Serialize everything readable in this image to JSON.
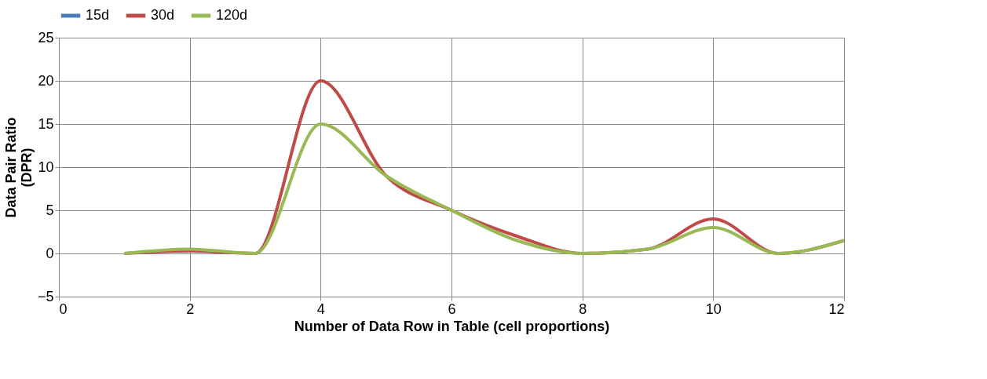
{
  "chart_data": {
    "type": "line",
    "xlabel": "Number of Data Row in Table  (cell proportions)",
    "ylabel": "Data Pair Ratio\n(DPR)",
    "x": [
      1,
      2,
      3,
      4,
      5,
      6,
      7,
      8,
      9,
      10,
      11,
      12
    ],
    "series": [
      {
        "name": "15d",
        "color": "#4a7ebb",
        "values": [
          null,
          null,
          null,
          null,
          null,
          null,
          null,
          null,
          null,
          null,
          null,
          null
        ]
      },
      {
        "name": "30d",
        "color": "#be4b48",
        "values": [
          0,
          0.3,
          0,
          20,
          9,
          5,
          2,
          0,
          0.5,
          4,
          0,
          1.5
        ]
      },
      {
        "name": "120d",
        "color": "#98b954",
        "values": [
          0,
          0.5,
          0,
          15,
          9,
          5,
          1.5,
          0,
          0.5,
          3,
          0,
          1.5
        ]
      }
    ],
    "xlim": [
      0,
      12
    ],
    "xticks": [
      0,
      2,
      4,
      6,
      8,
      10,
      12
    ],
    "ylim": [
      -5,
      25
    ],
    "yticks": [
      -5,
      0,
      5,
      10,
      15,
      20,
      25
    ],
    "grid": true,
    "legend": "top",
    "marker": "none",
    "line_style": "solid"
  }
}
